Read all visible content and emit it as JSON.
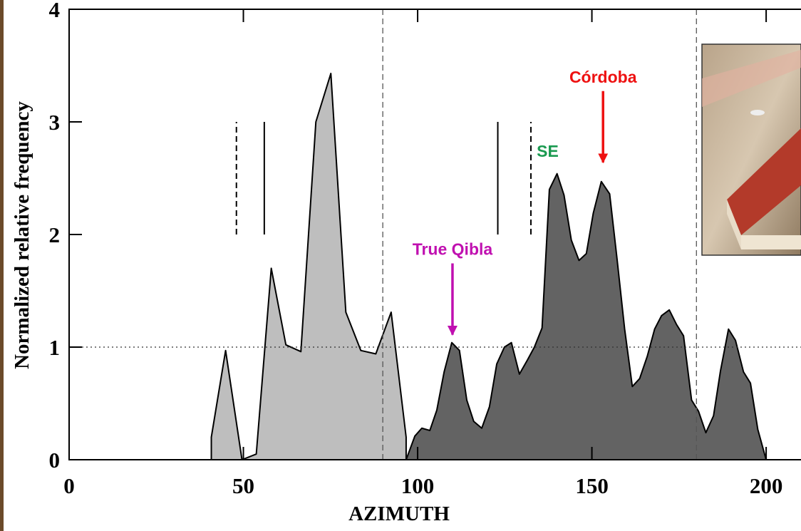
{
  "chart_data": {
    "type": "area",
    "x_label": "AZIMUTH",
    "y_label": "Normalized relative frequency",
    "xlim": [
      0,
      210
    ],
    "ylim": [
      0,
      4
    ],
    "xticks": [
      0,
      50,
      100,
      150,
      200
    ],
    "yticks": [
      0,
      1,
      2,
      3,
      4
    ],
    "series": [
      {
        "color": "#bebebe",
        "x": [
          40.8,
          40.8,
          44.9,
          49.6,
          53.7,
          58,
          62.2,
          66.5,
          70.8,
          75.1,
          79.4,
          83.7,
          88,
          92.4,
          96.7,
          96.7
        ],
        "values": [
          0,
          0.2,
          0.97,
          0,
          0.05,
          1.7,
          1.02,
          0.96,
          3.0,
          3.43,
          1.31,
          0.97,
          0.94,
          1.31,
          0.2,
          0
        ]
      },
      {
        "color": "#636363",
        "x": [
          96.7,
          99.2,
          101.2,
          103.5,
          105.5,
          107.6,
          109.8,
          112,
          114.1,
          116.1,
          118.4,
          120.6,
          122.7,
          124.9,
          126.9,
          129.2,
          131.4,
          133.5,
          135.7,
          137.8,
          140,
          142,
          144.1,
          146.3,
          148.4,
          150.4,
          152.7,
          155.1,
          157.3,
          159.4,
          161.6,
          163.7,
          165.9,
          168,
          170,
          172.2,
          174.3,
          176.3,
          178.6,
          180.6,
          182.7,
          184.9,
          186.9,
          189.2,
          191.2,
          193.5,
          195.5,
          197.6,
          200
        ],
        "values": [
          0,
          0.21,
          0.28,
          0.26,
          0.44,
          0.78,
          1.04,
          0.97,
          0.53,
          0.34,
          0.28,
          0.47,
          0.85,
          1.0,
          1.04,
          0.76,
          0.88,
          1.0,
          1.17,
          2.4,
          2.54,
          2.35,
          1.95,
          1.77,
          1.83,
          2.19,
          2.47,
          2.36,
          1.76,
          1.16,
          0.65,
          0.72,
          0.92,
          1.16,
          1.28,
          1.33,
          1.2,
          1.1,
          0.53,
          0.43,
          0.24,
          0.39,
          0.79,
          1.16,
          1.06,
          0.78,
          0.68,
          0.27,
          0
        ]
      }
    ],
    "vlines": [
      {
        "x": 90,
        "style": "dashed"
      },
      {
        "x": 180,
        "style": "dashed"
      }
    ],
    "hlines": [
      {
        "y": 1,
        "style": "dotted"
      }
    ],
    "segments": [
      {
        "x": 48,
        "y0": 2,
        "y1": 3,
        "style": "dashed"
      },
      {
        "x": 56,
        "y0": 2,
        "y1": 3,
        "style": "solid"
      },
      {
        "x": 123,
        "y0": 2,
        "y1": 3,
        "style": "solid"
      },
      {
        "x": 132.5,
        "y0": 2,
        "y1": 3,
        "style": "dashed"
      }
    ],
    "annotations": [
      {
        "text": "True Qibla",
        "color": "#c010b0",
        "x": 110,
        "y": 1.87,
        "arrow_y": 1.11
      },
      {
        "text": "Córdoba",
        "color": "#ee1111",
        "x": 153.2,
        "y": 3.4,
        "arrow_y": 2.64
      },
      {
        "text": "SE",
        "color": "#1a9a50",
        "x": 137.3,
        "y": 2.74
      }
    ]
  }
}
